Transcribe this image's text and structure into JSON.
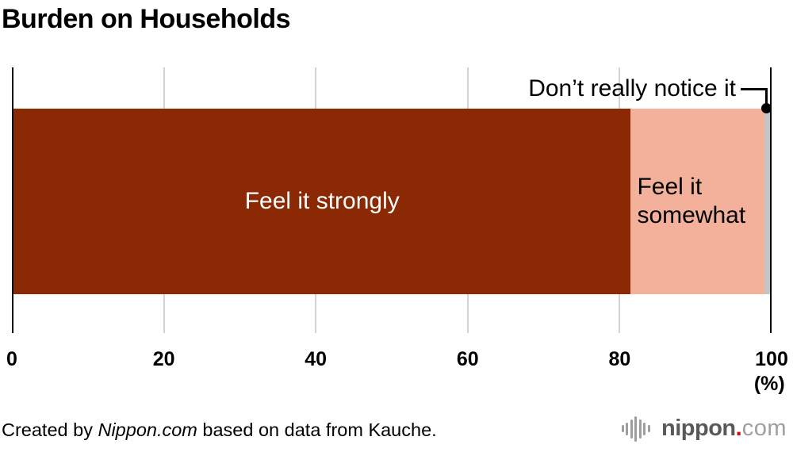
{
  "chart_data": {
    "type": "bar",
    "orientation": "horizontal",
    "stacked": true,
    "title": "Burden on Households",
    "series": [
      {
        "name": "Feel it strongly",
        "value": 81.6,
        "color": "#8a2903",
        "text_color": "#ffffff"
      },
      {
        "name": "Feel it somewhat",
        "value": 17.7,
        "color": "#f3b19c",
        "text_color": "#000000"
      },
      {
        "name": "Don’t really notice it",
        "value": 0.7,
        "color": "#c4c4c4",
        "text_color": "#000000"
      }
    ],
    "x_axis": {
      "ticks": [
        "0",
        "20",
        "40",
        "60",
        "80",
        "100"
      ],
      "unit": "(%)",
      "range": [
        0,
        100
      ],
      "grid": true
    },
    "annotation": {
      "text": "Don’t really notice it"
    },
    "legend_position": "inside-bars"
  },
  "bar_labels": {
    "strongly": "Feel it strongly",
    "somewhat_line1": "Feel it",
    "somewhat_line2": "somewhat",
    "annotation": "Don’t really notice it"
  },
  "footer": {
    "credit": {
      "prefix": "Created by ",
      "source": "Nippon.com",
      "suffix": " based on data from Kauche."
    },
    "logo": {
      "word": "nippon",
      "dot": ".",
      "tld": "com",
      "accent_color": "#e60012"
    }
  }
}
